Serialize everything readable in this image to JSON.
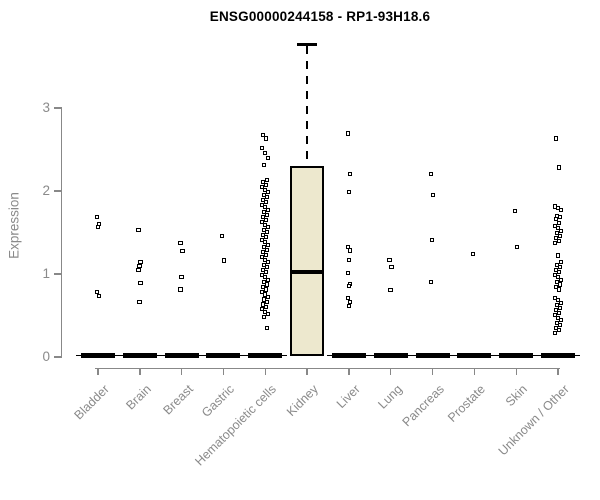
{
  "title": "ENSG00000244158 - RP1-93H18.6",
  "y_axis": {
    "label": "Expression"
  },
  "colors": {
    "box_fill": "#EDE8CE",
    "box_border": "#000000",
    "point": "#000000",
    "axis": "#888888",
    "tick_label": "#8a8a8a",
    "title": "#000000",
    "background": "#ffffff"
  },
  "chart_data": {
    "type": "boxplot",
    "title": "ENSG00000244158 - RP1-93H18.6",
    "xlabel": "",
    "ylabel": "Expression",
    "ylim": [
      0,
      3
    ],
    "yticks": [
      0,
      1,
      2,
      3
    ],
    "ytick_labels": [
      "0",
      "1",
      "2",
      "3"
    ],
    "grid": false,
    "legend": "none",
    "categories": [
      "Bladder",
      "Brain",
      "Breast",
      "Gastric",
      "Hematopoietic cells",
      "Kidney",
      "Liver",
      "Lung",
      "Pancreas",
      "Prostate",
      "Skin",
      "Unknown / Other"
    ],
    "series": [
      {
        "name": "Bladder",
        "box": {
          "min": 0,
          "q1": 0,
          "median": 0,
          "q3": 0,
          "max": 0
        },
        "points": [
          1.68,
          1.6,
          1.56,
          0.78,
          0.73
        ]
      },
      {
        "name": "Brain",
        "box": {
          "min": 0,
          "q1": 0,
          "median": 0,
          "q3": 0,
          "max": 0
        },
        "points": [
          1.53,
          1.14,
          1.09,
          1.05,
          0.89,
          0.66
        ]
      },
      {
        "name": "Breast",
        "box": {
          "min": 0,
          "q1": 0,
          "median": 0,
          "q3": 0,
          "max": 0
        },
        "points": [
          1.37,
          1.27,
          0.96,
          0.81
        ]
      },
      {
        "name": "Gastric",
        "box": {
          "min": 0,
          "q1": 0,
          "median": 0,
          "q3": 0,
          "max": 0
        },
        "points": [
          1.46,
          1.16
        ]
      },
      {
        "name": "Hematopoietic cells",
        "box": {
          "min": 0,
          "q1": 0,
          "median": 0,
          "q3": 0,
          "max": 0
        },
        "points": [
          2.67,
          2.63,
          2.51,
          2.45,
          2.4,
          2.31,
          2.13,
          2.1,
          2.07,
          2.04,
          2.01,
          1.98,
          1.95,
          1.92,
          1.89,
          1.86,
          1.83,
          1.8,
          1.77,
          1.74,
          1.71,
          1.68,
          1.65,
          1.62,
          1.59,
          1.56,
          1.53,
          1.5,
          1.47,
          1.44,
          1.41,
          1.38,
          1.35,
          1.32,
          1.29,
          1.26,
          1.23,
          1.2,
          1.17,
          1.14,
          1.11,
          1.08,
          1.05,
          1.02,
          0.99,
          0.96,
          0.93,
          0.9,
          0.87,
          0.84,
          0.81,
          0.78,
          0.75,
          0.72,
          0.69,
          0.66,
          0.63,
          0.6,
          0.57,
          0.54,
          0.51,
          0.48,
          0.35
        ]
      },
      {
        "name": "Kidney",
        "box": {
          "min": 0,
          "q1": 0.01,
          "median": 1.02,
          "q3": 2.3,
          "max": 3.78
        },
        "points": []
      },
      {
        "name": "Liver",
        "box": {
          "min": 0,
          "q1": 0,
          "median": 0,
          "q3": 0,
          "max": 0
        },
        "points": [
          2.69,
          2.2,
          1.99,
          1.32,
          1.28,
          1.17,
          1.01,
          0.88,
          0.85,
          0.71,
          0.66,
          0.61
        ]
      },
      {
        "name": "Lung",
        "box": {
          "min": 0,
          "q1": 0,
          "median": 0,
          "q3": 0,
          "max": 0
        },
        "points": [
          1.17,
          1.08,
          0.8
        ]
      },
      {
        "name": "Pancreas",
        "box": {
          "min": 0,
          "q1": 0,
          "median": 0,
          "q3": 0,
          "max": 0
        },
        "points": [
          2.2,
          1.95,
          1.41,
          0.9
        ]
      },
      {
        "name": "Prostate",
        "box": {
          "min": 0,
          "q1": 0,
          "median": 0,
          "q3": 0,
          "max": 0
        },
        "points": [
          1.24
        ]
      },
      {
        "name": "Skin",
        "box": {
          "min": 0,
          "q1": 0,
          "median": 0,
          "q3": 0,
          "max": 0
        },
        "points": [
          1.76,
          1.32
        ]
      },
      {
        "name": "Unknown / Other",
        "box": {
          "min": 0,
          "q1": 0,
          "median": 0,
          "q3": 0,
          "max": 0
        },
        "points": [
          2.63,
          2.28,
          1.81,
          1.79,
          1.77,
          1.7,
          1.68,
          1.66,
          1.61,
          1.58,
          1.55,
          1.52,
          1.49,
          1.46,
          1.43,
          1.4,
          1.37,
          1.22,
          1.14,
          1.11,
          1.08,
          1.05,
          1.02,
          0.99,
          0.96,
          0.93,
          0.9,
          0.87,
          0.84,
          0.81,
          0.71,
          0.68,
          0.65,
          0.62,
          0.59,
          0.56,
          0.53,
          0.5,
          0.47,
          0.44,
          0.41,
          0.38,
          0.35,
          0.32,
          0.29
        ]
      }
    ]
  }
}
